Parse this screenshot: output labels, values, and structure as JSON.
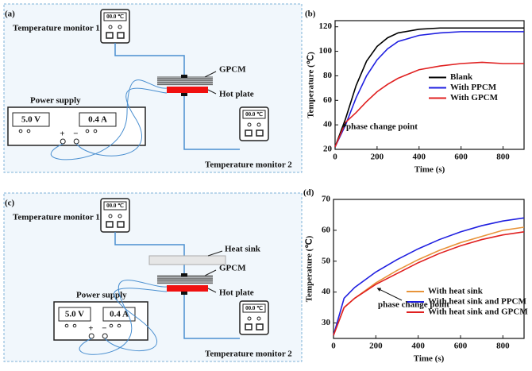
{
  "diagrams": [
    {
      "panel": "(a)",
      "monitor_1": {
        "label": "Temperature monitor 1",
        "display": "00.0 ℃"
      },
      "monitor_2": {
        "label": "Temperature monitor 2",
        "display": "00.0 ℃"
      },
      "material": "GPCM",
      "heater": "Hot plate",
      "power_supply": {
        "label": "Power supply",
        "voltage": "5.0  V",
        "current": "0.4  A",
        "plus": "+",
        "minus": "−"
      }
    },
    {
      "panel": "(c)",
      "monitor_1": {
        "label": "Temperature monitor 1",
        "display": "00.0 ℃"
      },
      "monitor_2": {
        "label": "Temperature monitor 2",
        "display": "00.0 ℃"
      },
      "heat_sink": "Heat sink",
      "material": "GPCM",
      "heater": "Hot plate",
      "power_supply": {
        "label": "Power supply",
        "voltage": "5.0  V",
        "current": "0.4  A",
        "plus": "+",
        "minus": "−"
      }
    }
  ],
  "chart_data": [
    {
      "type": "line",
      "panel": "(b)",
      "xlabel": "Time (s)",
      "ylabel": "Temperature (℃)",
      "x": [
        0,
        50,
        100,
        150,
        200,
        250,
        300,
        400,
        500,
        600,
        700,
        800,
        900
      ],
      "xlim": [
        0,
        900
      ],
      "xticks": [
        0,
        200,
        400,
        600,
        800
      ],
      "ylim": [
        20,
        125
      ],
      "yticks": [
        20,
        40,
        60,
        80,
        100,
        120
      ],
      "legend": "center right",
      "annotation": "phase change point",
      "series": [
        {
          "name": "Blank",
          "color": "#000000",
          "values": [
            22,
            45,
            72,
            92,
            104,
            111,
            115,
            118,
            119,
            119,
            119,
            119,
            119
          ]
        },
        {
          "name": "With PPCM",
          "color": "#1f1fe0",
          "values": [
            22,
            40,
            62,
            80,
            93,
            102,
            108,
            113,
            115,
            116,
            116,
            116,
            116
          ]
        },
        {
          "name": "With GPCM",
          "color": "#e02020",
          "values": [
            22,
            42,
            50,
            59,
            67,
            73,
            78,
            85,
            88,
            90,
            91,
            90,
            90
          ]
        }
      ]
    },
    {
      "type": "line",
      "panel": "(d)",
      "xlabel": "Time (s)",
      "ylabel": "Temperature (℃)",
      "x": [
        0,
        50,
        100,
        200,
        300,
        400,
        500,
        600,
        700,
        800,
        900
      ],
      "xlim": [
        0,
        900
      ],
      "xticks": [
        0,
        200,
        400,
        600,
        800
      ],
      "ylim": [
        25,
        70
      ],
      "yticks": [
        30,
        40,
        50,
        60,
        70
      ],
      "legend": "lower right",
      "annotation": "phase change point",
      "series": [
        {
          "name": "With heat sink",
          "color": "#e8943a",
          "values": [
            26,
            35,
            38,
            43,
            47,
            50.5,
            53.5,
            56,
            58,
            60,
            61
          ]
        },
        {
          "name": "With heat sink and PPCM",
          "color": "#1f1fe0",
          "values": [
            26,
            38,
            41.5,
            46.5,
            50.5,
            54,
            57,
            59.5,
            61.5,
            63,
            64
          ]
        },
        {
          "name": "With heat sink and GPCM",
          "color": "#e02020",
          "values": [
            26,
            35,
            38,
            42.5,
            46,
            49.5,
            52.5,
            55,
            57,
            58.5,
            59.5
          ]
        }
      ]
    }
  ]
}
